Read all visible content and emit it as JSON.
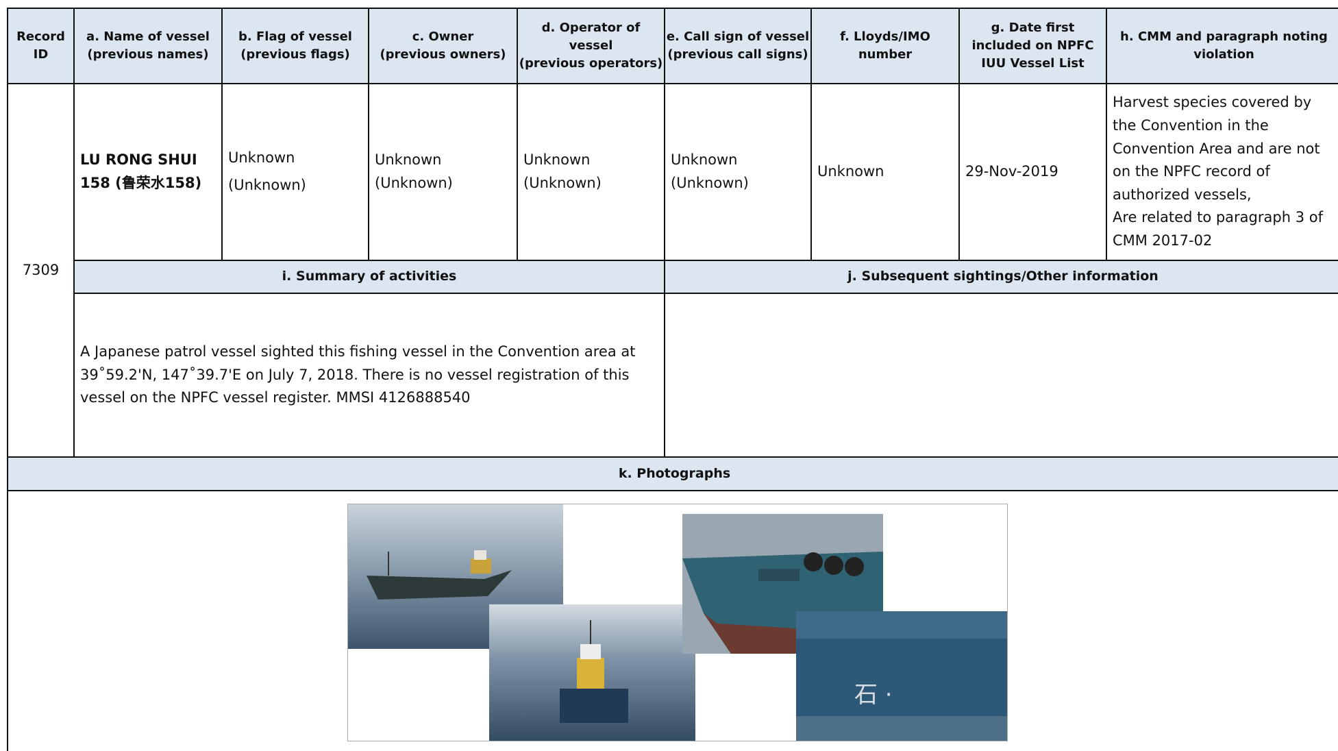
{
  "header": {
    "columns": [
      "Record\nID",
      "a. Name of vessel\n(previous names)",
      "b. Flag of vessel\n(previous flags)",
      "c. Owner\n(previous owners)",
      "d. Operator of\nvessel\n(previous operators)",
      "e. Call sign of vessel\n(previous call signs)",
      "f. Lloyds/IMO\nnumber",
      "g. Date first\nincluded on NPFC\nIUU Vessel List",
      "h. CMM and paragraph noting\nviolation"
    ]
  },
  "record": {
    "id": "7309",
    "name": "LU RONG SHUI\n158 (鲁荣水158)",
    "flag": "Unknown\n(Unknown)",
    "owner": "Unknown\n(Unknown)",
    "operator": "Unknown\n(Unknown)",
    "call_sign": "Unknown\n(Unknown)",
    "imo": "Unknown",
    "date": "29-Nov-2019",
    "violation": "Harvest species covered by the Convention in the Convention Area and are not on the NPFC record of authorized vessels,\nAre related to paragraph 3 of CMM 2017-02"
  },
  "sections": {
    "summary_title": "i. Summary of activities",
    "summary_text": "A Japanese patrol vessel sighted this fishing vessel in the Convention area at 39˚59.2'N, 147˚39.7'E on July 7, 2018. There is no vessel registration of this vessel on the NPFC vessel register. MMSI 4126888540",
    "sightings_title": "j. Subsequent sightings/Other information",
    "photos_title": "k. Photographs"
  }
}
